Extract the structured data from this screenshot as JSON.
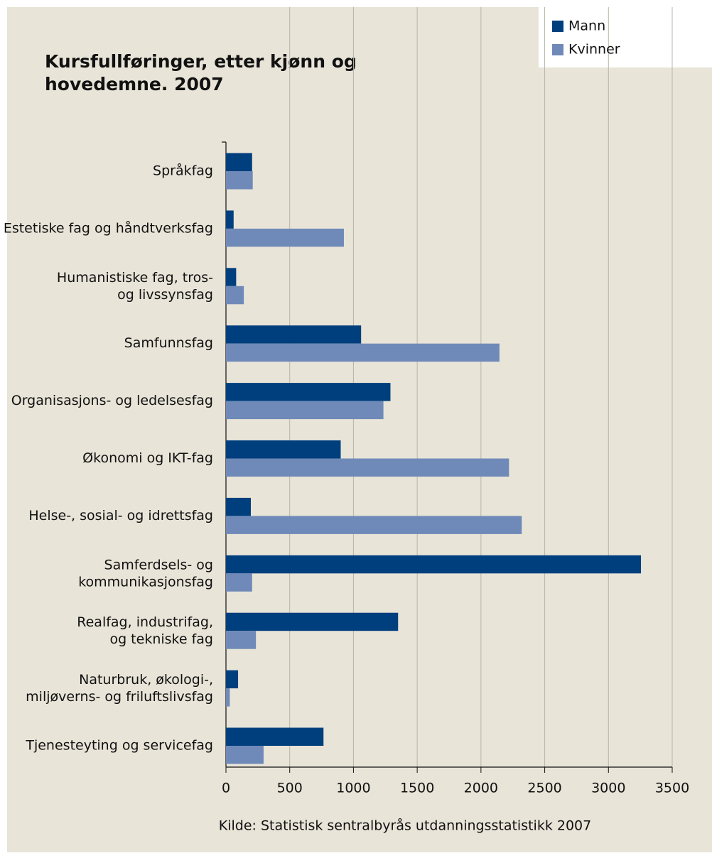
{
  "chart_data": {
    "type": "bar",
    "orientation": "horizontal",
    "title": "Kursfullføringer, etter kjønn og\nhovedemne. 2007",
    "source": "Kilde: Statistisk sentralbyrås utdanningsstatistikk 2007",
    "categories": [
      "Språkfag",
      "Estetiske fag og håndtverksfag",
      "Humanistiske fag, tros-\nog livssynsfag",
      "Samfunnsfag",
      "Organisasjons- og ledelsesfag",
      "Økonomi og IKT-fag",
      "Helse-, sosial- og idrettsfag",
      "Samferdsels- og\nkommunikasjonsfag",
      "Realfag, industrifag,\nog tekniske fag",
      "Naturbruk, økologi-,\nmiljøverns- og friluftslivsfag",
      "Tjenesteyting og servicefag"
    ],
    "series": [
      {
        "name": "Mann",
        "color": "#003f7d",
        "values": [
          205,
          60,
          80,
          1060,
          1290,
          900,
          195,
          3255,
          1350,
          95,
          765
        ]
      },
      {
        "name": "Kvinner",
        "color": "#6f8ab8",
        "values": [
          210,
          925,
          140,
          2145,
          1235,
          2220,
          2320,
          205,
          235,
          30,
          295
        ]
      }
    ],
    "xlim": [
      0,
      3500
    ],
    "xticks": [
      0,
      500,
      1000,
      1500,
      2000,
      2500,
      3000,
      3500
    ],
    "grid": true,
    "legend": "top-right"
  }
}
